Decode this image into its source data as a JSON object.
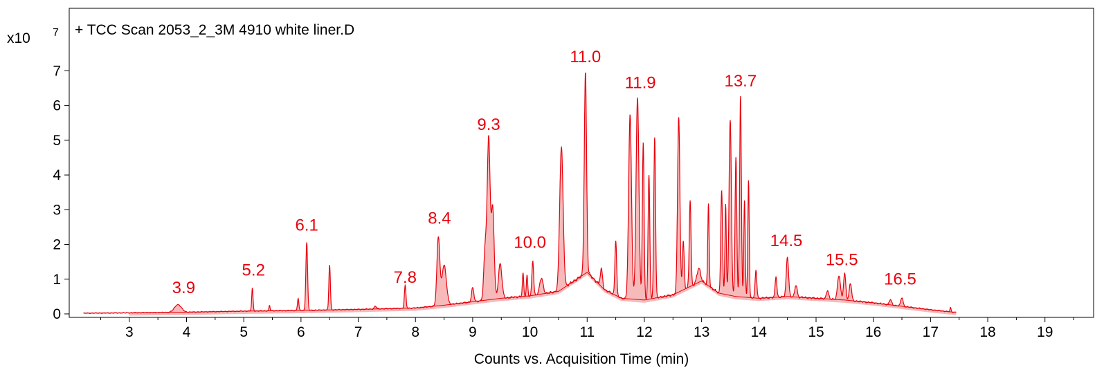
{
  "chart_data": {
    "type": "line",
    "title": "+ TCC Scan 2053_2_3M 4910 white liner.D",
    "xlabel": "Counts vs. Acquisition Time (min)",
    "ylabel": "",
    "y_multiplier_label": "x10",
    "y_multiplier_exponent": "7",
    "xlim": [
      1.95,
      19.85
    ],
    "ylim": [
      -0.1,
      8.8
    ],
    "x_ticks": [
      3,
      4,
      5,
      6,
      7,
      8,
      9,
      10,
      11,
      12,
      13,
      14,
      15,
      16,
      17,
      18,
      19
    ],
    "y_ticks": [
      0,
      1,
      2,
      3,
      4,
      5,
      6,
      7
    ],
    "line_color": "#e8000b",
    "fill_color": "#f4a3a3",
    "grid": false,
    "peak_labels": [
      {
        "text": "3.9",
        "x": 3.95,
        "y": 0.6
      },
      {
        "text": "5.2",
        "x": 5.17,
        "y": 1.1
      },
      {
        "text": "6.1",
        "x": 6.1,
        "y": 2.4
      },
      {
        "text": "7.8",
        "x": 7.82,
        "y": 0.9
      },
      {
        "text": "8.4",
        "x": 8.42,
        "y": 2.6
      },
      {
        "text": "9.3",
        "x": 9.28,
        "y": 5.3
      },
      {
        "text": "10.0",
        "x": 10.0,
        "y": 1.9
      },
      {
        "text": "11.0",
        "x": 10.97,
        "y": 7.25
      },
      {
        "text": "11.9",
        "x": 11.93,
        "y": 6.5
      },
      {
        "text": "13.7",
        "x": 13.68,
        "y": 6.55
      },
      {
        "text": "14.5",
        "x": 14.48,
        "y": 1.95
      },
      {
        "text": "15.5",
        "x": 15.45,
        "y": 1.4
      },
      {
        "text": "16.5",
        "x": 16.47,
        "y": 0.85
      }
    ],
    "baseline_points": [
      [
        2.2,
        0.02
      ],
      [
        3.0,
        0.03
      ],
      [
        4.0,
        0.05
      ],
      [
        5.0,
        0.08
      ],
      [
        6.0,
        0.1
      ],
      [
        7.0,
        0.13
      ],
      [
        8.0,
        0.17
      ],
      [
        8.5,
        0.25
      ],
      [
        9.0,
        0.35
      ],
      [
        9.5,
        0.45
      ],
      [
        10.0,
        0.52
      ],
      [
        10.5,
        0.65
      ],
      [
        11.0,
        1.2
      ],
      [
        11.3,
        0.7
      ],
      [
        11.6,
        0.45
      ],
      [
        12.0,
        0.4
      ],
      [
        12.5,
        0.55
      ],
      [
        13.0,
        0.95
      ],
      [
        13.3,
        0.6
      ],
      [
        13.6,
        0.5
      ],
      [
        14.0,
        0.45
      ],
      [
        14.5,
        0.5
      ],
      [
        15.0,
        0.45
      ],
      [
        15.5,
        0.4
      ],
      [
        16.0,
        0.32
      ],
      [
        16.5,
        0.22
      ],
      [
        17.0,
        0.12
      ],
      [
        17.4,
        0.05
      ]
    ],
    "peaks": [
      [
        3.85,
        0.22,
        0.06
      ],
      [
        5.15,
        0.65,
        0.012
      ],
      [
        5.45,
        0.15,
        0.01
      ],
      [
        5.95,
        0.35,
        0.012
      ],
      [
        6.1,
        1.95,
        0.015
      ],
      [
        6.5,
        1.3,
        0.013
      ],
      [
        7.3,
        0.08,
        0.02
      ],
      [
        7.82,
        0.65,
        0.014
      ],
      [
        8.4,
        1.95,
        0.025
      ],
      [
        8.5,
        1.15,
        0.04
      ],
      [
        9.0,
        0.4,
        0.02
      ],
      [
        9.22,
        1.5,
        0.025
      ],
      [
        9.28,
        4.6,
        0.025
      ],
      [
        9.35,
        2.6,
        0.025
      ],
      [
        9.48,
        1.0,
        0.03
      ],
      [
        9.88,
        0.65,
        0.012
      ],
      [
        9.95,
        0.6,
        0.012
      ],
      [
        10.05,
        1.0,
        0.015
      ],
      [
        10.2,
        0.45,
        0.03
      ],
      [
        10.55,
        4.1,
        0.03
      ],
      [
        10.97,
        5.8,
        0.02
      ],
      [
        11.25,
        0.5,
        0.02
      ],
      [
        11.5,
        1.6,
        0.015
      ],
      [
        11.75,
        5.3,
        0.025
      ],
      [
        11.88,
        5.8,
        0.025
      ],
      [
        11.98,
        4.55,
        0.015
      ],
      [
        12.08,
        3.55,
        0.015
      ],
      [
        12.18,
        4.65,
        0.015
      ],
      [
        12.6,
        5.05,
        0.02
      ],
      [
        12.68,
        1.4,
        0.015
      ],
      [
        12.8,
        2.5,
        0.015
      ],
      [
        12.95,
        0.4,
        0.03
      ],
      [
        13.12,
        2.35,
        0.012
      ],
      [
        13.35,
        3.0,
        0.015
      ],
      [
        13.42,
        2.6,
        0.012
      ],
      [
        13.5,
        5.05,
        0.02
      ],
      [
        13.6,
        4.0,
        0.015
      ],
      [
        13.68,
        5.8,
        0.015
      ],
      [
        13.75,
        2.8,
        0.012
      ],
      [
        13.82,
        3.4,
        0.012
      ],
      [
        13.95,
        0.8,
        0.015
      ],
      [
        14.3,
        0.6,
        0.015
      ],
      [
        14.5,
        1.15,
        0.02
      ],
      [
        14.65,
        0.35,
        0.02
      ],
      [
        15.2,
        0.25,
        0.02
      ],
      [
        15.4,
        0.7,
        0.025
      ],
      [
        15.5,
        0.75,
        0.02
      ],
      [
        15.6,
        0.5,
        0.02
      ],
      [
        16.3,
        0.15,
        0.02
      ],
      [
        16.5,
        0.25,
        0.02
      ],
      [
        17.35,
        0.12,
        0.01
      ]
    ]
  }
}
